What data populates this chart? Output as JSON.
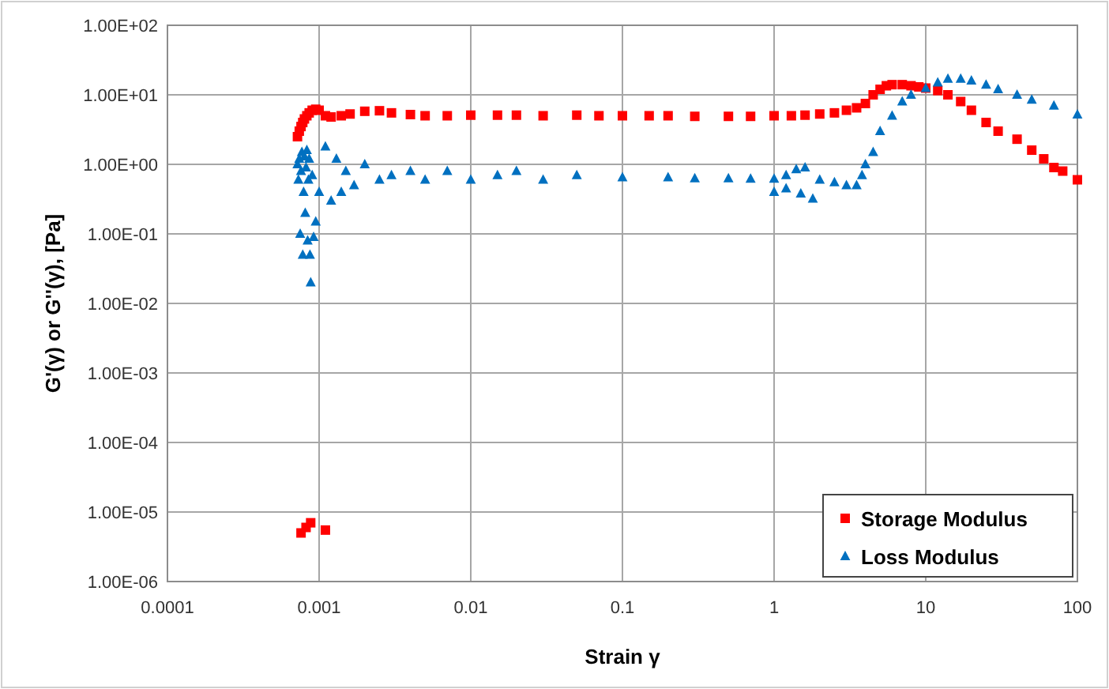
{
  "chart_data": {
    "type": "scatter",
    "xlabel": "Strain γ",
    "ylabel": "G'(γ) or G''(γ), [Pa]",
    "log": "xy",
    "grid": true,
    "legend": "bottom right",
    "xlim": [
      0.0001,
      100
    ],
    "xticks": [
      0.0001,
      0.001,
      0.01,
      0.1,
      1,
      10,
      100
    ],
    "ylim": [
      1e-06,
      100
    ],
    "yticks": [
      {
        "value": 1e-06,
        "label": "1.00E-06"
      },
      {
        "value": 1e-05,
        "label": "1.00E-05"
      },
      {
        "value": 0.0001,
        "label": "1.00E-04"
      },
      {
        "value": 0.001,
        "label": "1.00E-03"
      },
      {
        "value": 0.01,
        "label": "1.00E-02"
      },
      {
        "value": 0.1,
        "label": "1.00E-01"
      },
      {
        "value": 1,
        "label": "1.00E+00"
      },
      {
        "value": 10,
        "label": "1.00E+01"
      },
      {
        "value": 100,
        "label": "1.00E+02"
      }
    ],
    "series": [
      {
        "name": "Storage Modulus",
        "color": "#ff0000",
        "marker": "square",
        "x": [
          0.00076,
          0.00082,
          0.00088,
          0.0011,
          0.00072,
          0.00074,
          0.00076,
          0.00078,
          0.0008,
          0.00083,
          0.00086,
          0.0009,
          0.00095,
          0.001,
          0.0011,
          0.0012,
          0.0014,
          0.0016,
          0.002,
          0.0025,
          0.003,
          0.004,
          0.005,
          0.007,
          0.01,
          0.015,
          0.02,
          0.03,
          0.05,
          0.07,
          0.1,
          0.15,
          0.2,
          0.3,
          0.5,
          0.7,
          1,
          1.3,
          1.6,
          2,
          2.5,
          3,
          3.5,
          4,
          4.5,
          5,
          5.5,
          6,
          7,
          8,
          9,
          10,
          12,
          14,
          17,
          20,
          25,
          30,
          40,
          50,
          60,
          70,
          80,
          100
        ],
        "values": [
          5e-06,
          6e-06,
          7e-06,
          5.5e-06,
          2.5,
          3,
          3.5,
          4,
          4.5,
          5,
          5.5,
          6,
          6.2,
          6,
          5,
          4.8,
          5,
          5.3,
          5.8,
          5.9,
          5.5,
          5.2,
          5,
          5,
          5.1,
          5.1,
          5.1,
          5,
          5.1,
          5,
          5,
          5,
          5,
          4.9,
          4.9,
          4.9,
          5,
          5,
          5.1,
          5.3,
          5.5,
          6,
          6.5,
          7.5,
          10,
          12,
          13.5,
          14,
          14,
          13.5,
          13,
          12.5,
          11.5,
          10,
          8,
          6,
          4,
          3,
          2.3,
          1.6,
          1.2,
          0.9,
          0.8,
          0.6
        ]
      },
      {
        "name": "Loss Modulus",
        "color": "#0070c0",
        "marker": "triangle",
        "x": [
          0.00072,
          0.00073,
          0.00074,
          0.00075,
          0.00076,
          0.00077,
          0.00078,
          0.00079,
          0.0008,
          0.00081,
          0.00082,
          0.00083,
          0.00084,
          0.00085,
          0.00086,
          0.00087,
          0.00088,
          0.0009,
          0.00092,
          0.00095,
          0.001,
          0.0011,
          0.0012,
          0.0013,
          0.0014,
          0.0015,
          0.0017,
          0.002,
          0.0025,
          0.003,
          0.004,
          0.005,
          0.007,
          0.01,
          0.015,
          0.02,
          0.03,
          0.05,
          0.1,
          0.2,
          0.3,
          0.5,
          0.7,
          1,
          1,
          1.2,
          1.4,
          1.6,
          1.2,
          1.5,
          1.8,
          2,
          2.5,
          3,
          3.5,
          3.8,
          4,
          4.5,
          5,
          6,
          7,
          8,
          10,
          12,
          14,
          17,
          20,
          25,
          30,
          40,
          50,
          70,
          100
        ],
        "values": [
          1,
          0.6,
          1.2,
          0.1,
          0.8,
          1.5,
          0.05,
          0.4,
          1.3,
          0.2,
          0.9,
          1.6,
          0.08,
          0.6,
          1.2,
          0.05,
          0.02,
          0.7,
          0.09,
          0.15,
          0.4,
          1.8,
          0.3,
          1.2,
          0.4,
          0.8,
          0.5,
          1,
          0.6,
          0.7,
          0.8,
          0.6,
          0.8,
          0.6,
          0.7,
          0.8,
          0.6,
          0.7,
          0.65,
          0.65,
          0.63,
          0.63,
          0.62,
          0.62,
          0.4,
          0.7,
          0.85,
          0.9,
          0.45,
          0.38,
          0.32,
          0.6,
          0.55,
          0.5,
          0.5,
          0.7,
          1,
          1.5,
          3,
          5,
          8,
          10,
          12.5,
          15,
          17,
          17,
          16,
          14,
          12,
          10,
          8.5,
          7,
          5.2
        ]
      }
    ]
  }
}
